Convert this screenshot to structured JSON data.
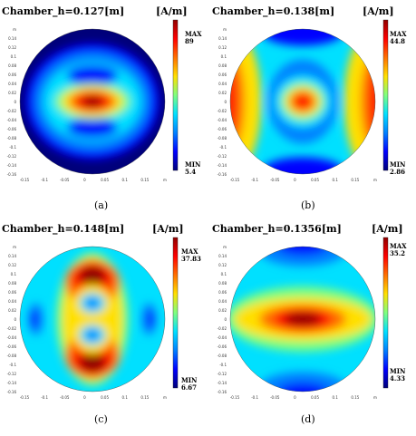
{
  "colormap": [
    "#00007a",
    "#0000ff",
    "#0080ff",
    "#00e0ff",
    "#7fff7f",
    "#ffe000",
    "#ff7000",
    "#ff0000",
    "#900000"
  ],
  "axis_ticks": {
    "x": [
      "-0.15",
      "-0.1",
      "-0.05",
      "0",
      "0.05",
      "0.1",
      "0.15",
      "m"
    ],
    "y": [
      "m",
      "0.14",
      "0.12",
      "0.1",
      "0.08",
      "0.06",
      "0.04",
      "0.02",
      "0",
      "-0.02",
      "-0.04",
      "-0.06",
      "-0.08",
      "-0.1",
      "-0.12",
      "-0.14",
      "-0.16"
    ]
  },
  "chart_data": [
    {
      "type": "heatmap",
      "title": "Chamber_h=0.127[m]",
      "unit": "[A/m]",
      "max_label": "MAX",
      "max_value": "89",
      "min_label": "MIN",
      "min_value": "5.4",
      "caption": "(a)",
      "pattern": "central-hotspot"
    },
    {
      "type": "heatmap",
      "title": "Chamber_h=0.138[m]",
      "unit": "[A/m]",
      "max_label": "MAX",
      "max_value": "44.8",
      "min_label": "MIN",
      "min_value": "2.86",
      "caption": "(b)",
      "pattern": "center-and-sides"
    },
    {
      "type": "heatmap",
      "title": "Chamber_h=0.148[m]",
      "unit": "[A/m]",
      "max_label": "MAX",
      "max_value": "37.83",
      "min_label": "MIN",
      "min_value": "6.67",
      "caption": "(c)",
      "pattern": "top-bottom-lobes"
    },
    {
      "type": "heatmap",
      "title": "Chamber_h=0.1356[m]",
      "unit": "[A/m]",
      "max_label": "MAX",
      "max_value": "35.2",
      "min_label": "MIN",
      "min_value": "4.33",
      "caption": "(d)",
      "pattern": "horizontal-band"
    }
  ]
}
